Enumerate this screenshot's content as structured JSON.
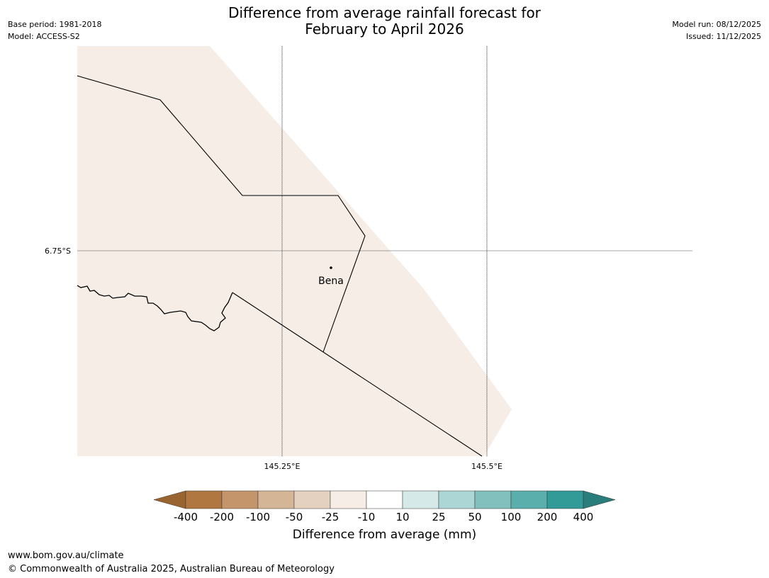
{
  "title": {
    "line1": "Difference from average rainfall forecast for",
    "line2": "February to April 2026"
  },
  "meta": {
    "base_period": "Base period: 1981-2018",
    "model": "Model: ACCESS-S2",
    "model_run": "Model run: 08/12/2025",
    "issued": "Issued: 11/12/2025"
  },
  "map": {
    "fill_color": "#f5ede6",
    "gridlines": {
      "lat_label": "6.75°S",
      "lon_labels": [
        "145.25°E",
        "145.5°E"
      ]
    },
    "town": {
      "name": "Bena"
    }
  },
  "colorbar": {
    "title": "Difference from average (mm)",
    "tick_labels": [
      "-400",
      "-200",
      "-100",
      "-50",
      "-25",
      "-10",
      "10",
      "25",
      "50",
      "100",
      "200",
      "400"
    ],
    "colors": [
      "#9a6430",
      "#b07740",
      "#c4956b",
      "#d4b595",
      "#e5d1c0",
      "#f5ede6",
      "#ffffff",
      "#d6e9e9",
      "#acd6d5",
      "#82c0bd",
      "#5aaeab",
      "#339b97",
      "#297d7a"
    ]
  },
  "footer": {
    "url": "www.bom.gov.au/climate",
    "copyright": "© Commonwealth of Australia 2025, Australian Bureau of Meteorology"
  }
}
